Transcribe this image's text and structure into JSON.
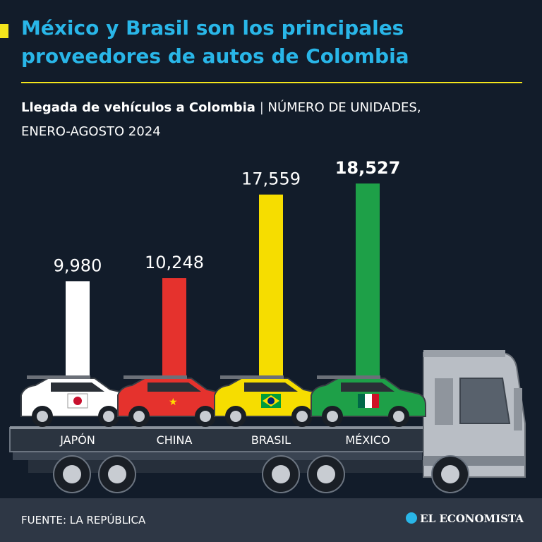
{
  "header": {
    "title_line1": "México y Brasil son los principales",
    "title_line2": "proveedores de autos de Colombia",
    "subtitle_bold": "Llegada de vehículos a Colombia",
    "subtitle_sep": "|",
    "subtitle_rest1": "NÚMERO DE UNIDADES,",
    "subtitle_rest2": "ENERO-AGOSTO 2024"
  },
  "chart_data": {
    "type": "bar",
    "categories": [
      "JAPÓN",
      "CHINA",
      "BRASIL",
      "MÉXICO"
    ],
    "values": [
      9980,
      10248,
      17559,
      18527
    ],
    "value_labels": [
      "9,980",
      "10,248",
      "17,559",
      "18,527"
    ],
    "bar_colors": [
      "#ffffff",
      "#e5322d",
      "#f6dd00",
      "#1ea048"
    ],
    "highlight": "MÉXICO",
    "ylim": [
      0,
      18527
    ],
    "grid": false,
    "legend": "none"
  },
  "footer": {
    "source": "FUENTE: LA REPÚBLICA",
    "brand": "EL ECONOMISTA"
  },
  "colors": {
    "background": "#121c2a",
    "title": "#29b6e8",
    "accent": "#f4e51c",
    "footer_bg": "#2e3745"
  },
  "icons": [
    "car-transporter-truck",
    "flag-japan-icon",
    "flag-china-icon",
    "flag-brazil-icon",
    "flag-mexico-icon",
    "el-economista-logo"
  ]
}
